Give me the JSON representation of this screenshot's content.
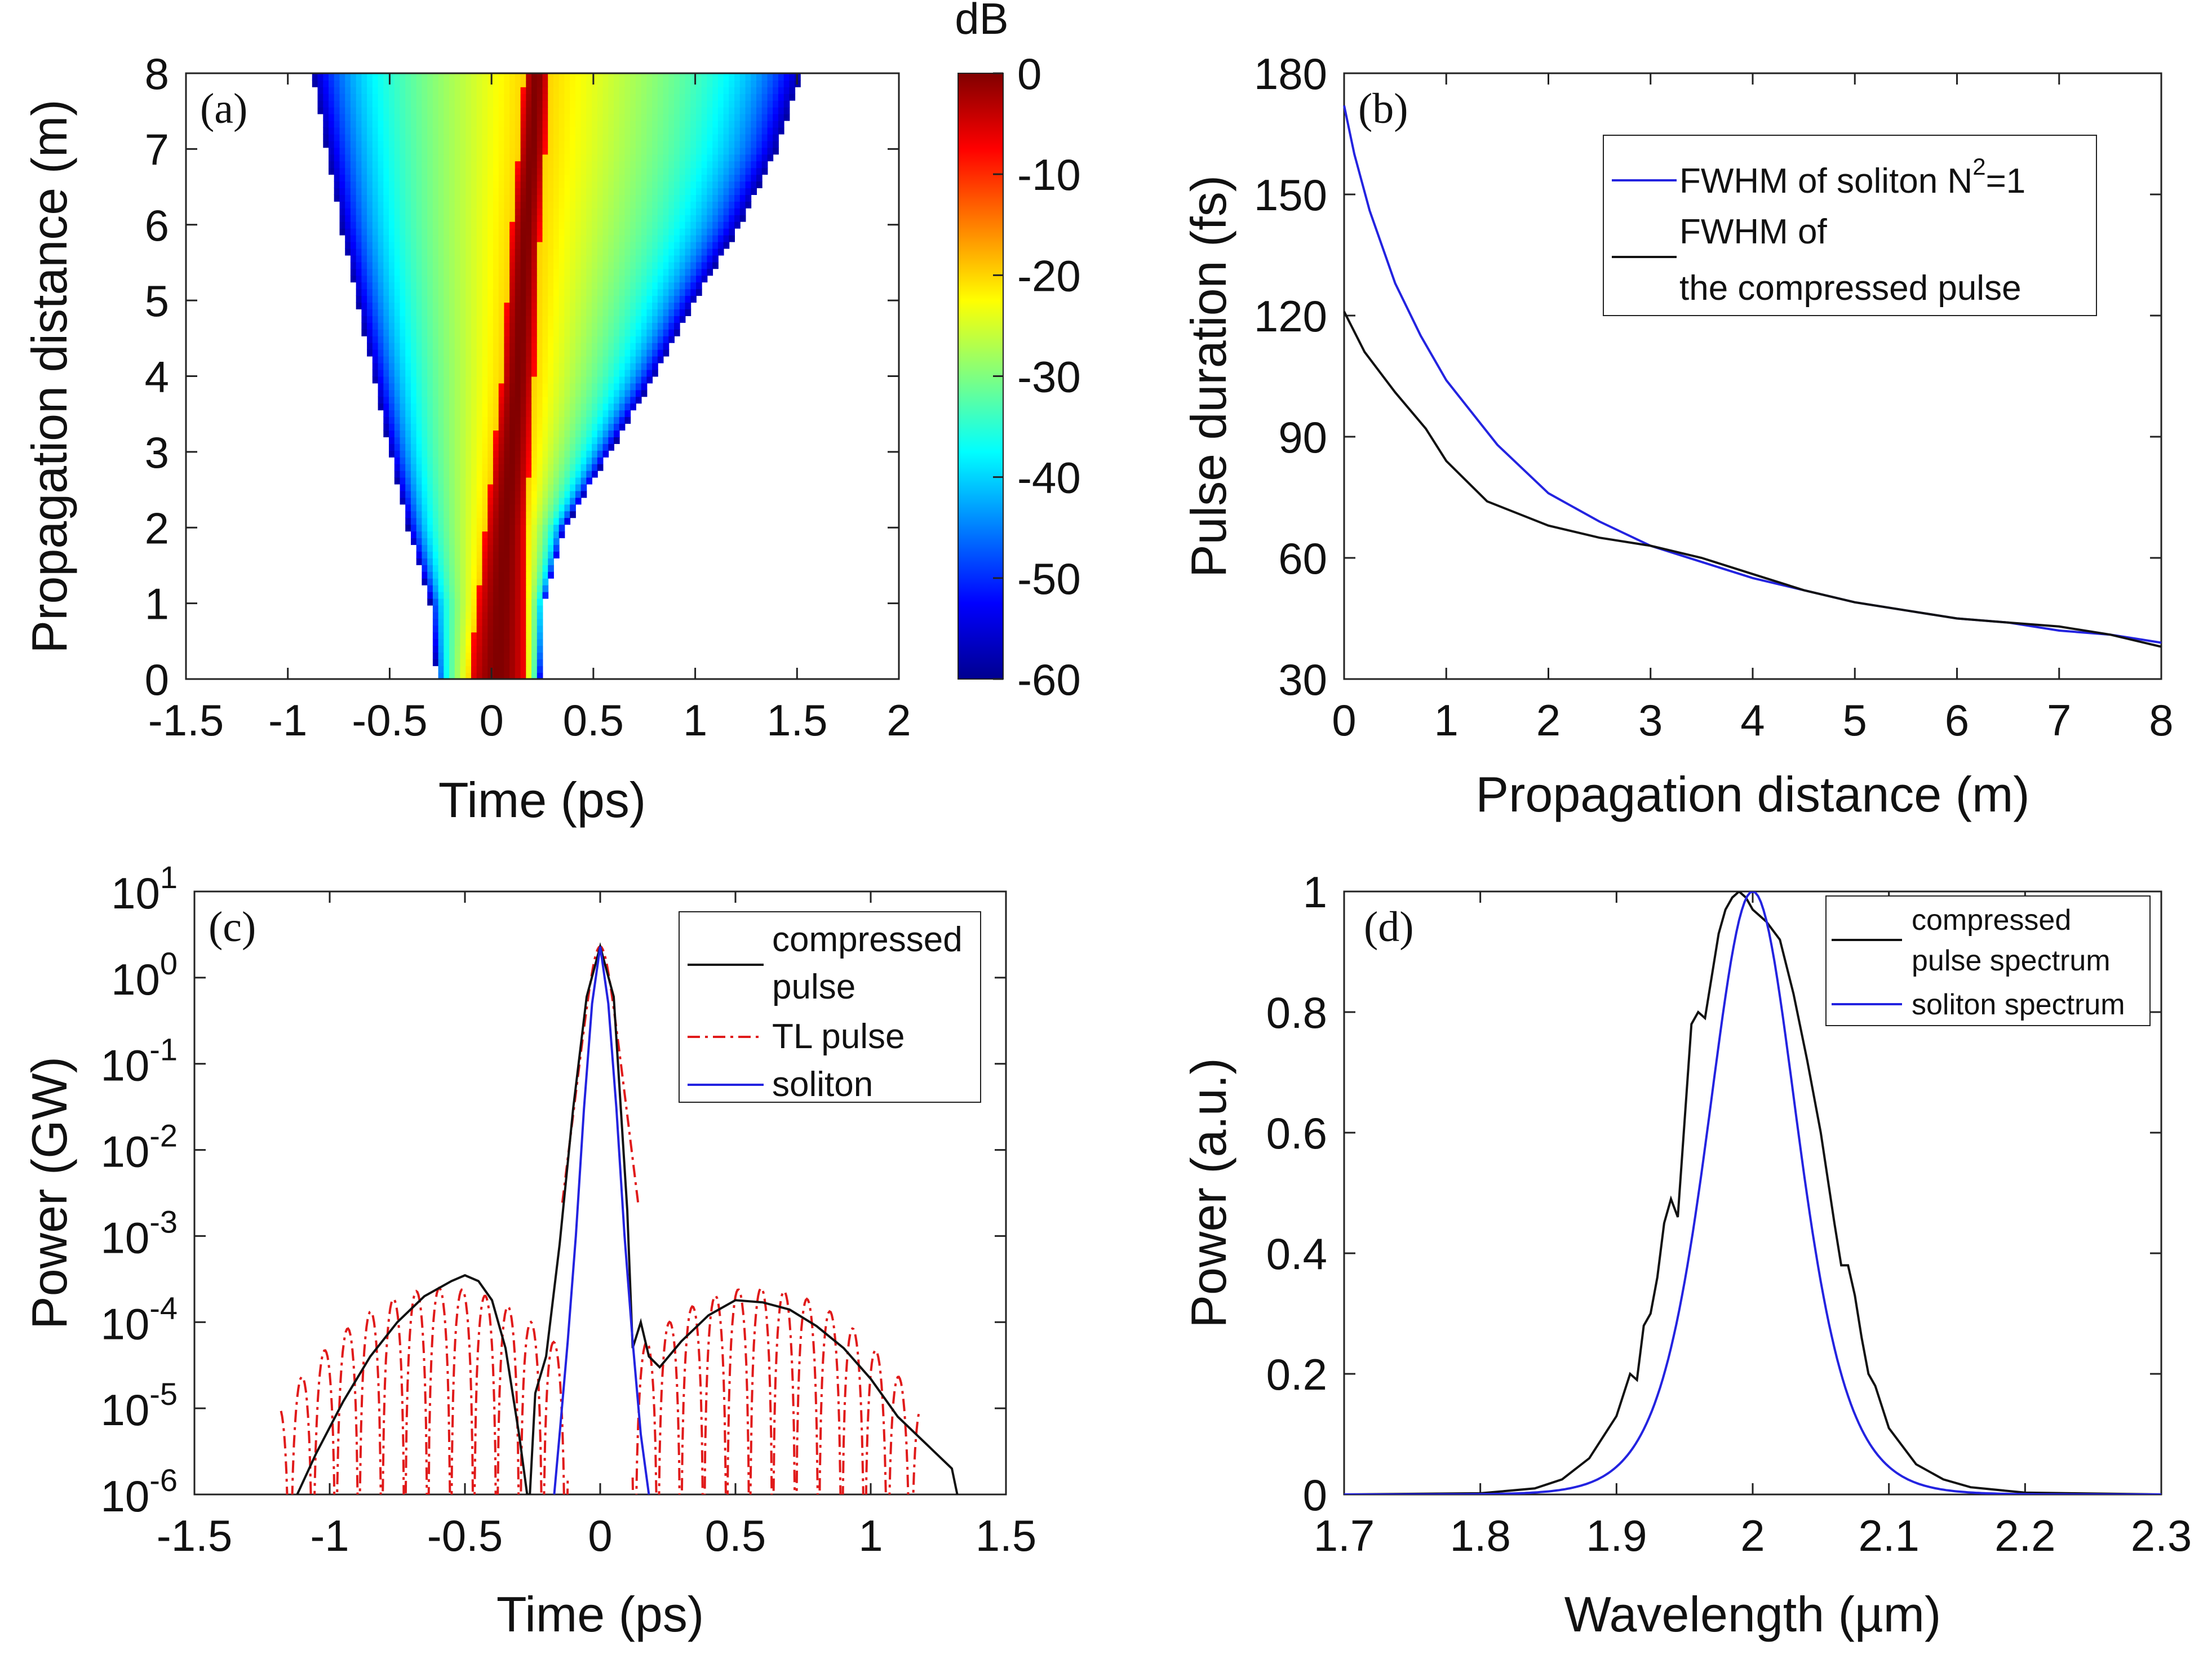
{
  "chart_data": [
    {
      "id": "a",
      "type": "heatmap",
      "panel_label": "(a)",
      "xlabel": "Time (ps)",
      "ylabel": "Propagation distance (m)",
      "xlim": [
        -1.5,
        2
      ],
      "ylim": [
        0,
        8
      ],
      "xticks": [
        "-1.5",
        "-1",
        "-0.5",
        "0",
        "0.5",
        "1",
        "1.5",
        "2"
      ],
      "yticks": [
        "0",
        "1",
        "2",
        "3",
        "4",
        "5",
        "6",
        "7",
        "8"
      ],
      "colorbar": {
        "label": "dB",
        "range": [
          -60,
          0
        ],
        "ticks": [
          "0",
          "-10",
          "-20",
          "-30",
          "-40",
          "-50",
          "-60"
        ],
        "colormap": "jet"
      },
      "field": {
        "z": [
          0,
          1,
          2,
          3,
          4,
          5,
          6,
          7,
          8
        ],
        "left_edge": [
          -0.27,
          -0.3,
          -0.41,
          -0.5,
          -0.58,
          -0.66,
          -0.74,
          -0.81,
          -0.88
        ],
        "right_edge": [
          0.24,
          0.26,
          0.36,
          0.58,
          0.8,
          1.0,
          1.22,
          1.4,
          1.52
        ],
        "core_center": [
          0.03,
          0.05,
          0.07,
          0.1,
          0.13,
          0.15,
          0.17,
          0.2,
          0.22
        ],
        "core_halfwidth": [
          0.14,
          0.12,
          0.1,
          0.09,
          0.08,
          0.075,
          0.07,
          0.065,
          0.06
        ]
      }
    },
    {
      "id": "b",
      "type": "line",
      "panel_label": "(b)",
      "xlabel": "Propagation distance (m)",
      "ylabel": "Pulse duration (fs)",
      "xlim": [
        0,
        8
      ],
      "ylim": [
        30,
        180
      ],
      "xticks": [
        "0",
        "1",
        "2",
        "3",
        "4",
        "5",
        "6",
        "7",
        "8"
      ],
      "yticks": [
        "30",
        "60",
        "90",
        "120",
        "150",
        "180"
      ],
      "legend": "top-right",
      "series": [
        {
          "name": "FWHM of soliton N",
          "name_sup": "2",
          "name_suffix": "=1",
          "color": "#2323e0",
          "x": [
            0,
            0.1,
            0.25,
            0.5,
            0.75,
            1,
            1.5,
            2,
            2.5,
            3,
            3.5,
            4,
            4.5,
            5,
            5.5,
            6,
            6.5,
            7,
            7.5,
            8
          ],
          "y": [
            172,
            160,
            146,
            128,
            115,
            104,
            88,
            76,
            69,
            63,
            59,
            55,
            52,
            49,
            47,
            45,
            44,
            42,
            41,
            39
          ]
        },
        {
          "name": "FWHM of",
          "name_line2": "the compressed pulse",
          "color": "#111111",
          "x": [
            0,
            0.2,
            0.5,
            0.8,
            1,
            1.2,
            1.4,
            1.7,
            2,
            2.5,
            3,
            3.5,
            4,
            4.5,
            5,
            5.5,
            6,
            6.5,
            7,
            7.5,
            8
          ],
          "y": [
            121,
            111,
            101,
            92,
            84,
            79,
            74,
            71,
            68,
            65,
            63,
            60,
            56,
            52,
            49,
            47,
            45,
            44,
            43,
            41,
            38
          ]
        }
      ]
    },
    {
      "id": "c",
      "type": "line",
      "panel_label": "(c)",
      "xlabel": "Time (ps)",
      "ylabel": "Power (GW)",
      "yscale": "log",
      "xlim": [
        -1.5,
        1.5
      ],
      "ylim": [
        1e-06,
        10
      ],
      "xticks": [
        "-1.5",
        "-1",
        "-0.5",
        "0",
        "0.5",
        "1",
        "1.5"
      ],
      "yticks_exp": [
        "1",
        "0",
        "-1",
        "-2",
        "-3",
        "-4",
        "-5",
        "-6"
      ],
      "ytick_base": "10",
      "legend": "top-right",
      "series": [
        {
          "name": "compressed",
          "name_line2": "pulse",
          "color": "#111111",
          "style": "solid",
          "x": [
            -1.12,
            -1.05,
            -0.95,
            -0.85,
            -0.75,
            -0.65,
            -0.55,
            -0.5,
            -0.45,
            -0.4,
            -0.35,
            -0.3,
            -0.27,
            -0.26,
            -0.24,
            -0.2,
            -0.15,
            -0.1,
            -0.05,
            0,
            0.05,
            0.1,
            0.12,
            0.15,
            0.18,
            0.22,
            0.3,
            0.4,
            0.5,
            0.6,
            0.7,
            0.8,
            0.9,
            1.0,
            1.1,
            1.2,
            1.3,
            1.32
          ],
          "y": [
            1e-06,
            3e-06,
            1.2e-05,
            4e-05,
            0.0001,
            0.0002,
            0.0003,
            0.00035,
            0.0003,
            0.00018,
            5e-05,
            5e-06,
            1e-06,
            1e-06,
            1.5e-05,
            4e-05,
            0.0008,
            0.03,
            0.6,
            2.3,
            0.6,
            0.002,
            5e-05,
            0.0001,
            4e-05,
            3e-05,
            6e-05,
            0.00012,
            0.00018,
            0.00017,
            0.00014,
            9e-05,
            5e-05,
            2.2e-05,
            8e-06,
            4e-06,
            2e-06,
            1e-06
          ]
        },
        {
          "name": "TL pulse",
          "color": "#e01a1a",
          "style": "dashdot",
          "envelope": 0.00025,
          "x_start": -1.18,
          "x_end": 1.18,
          "x_gap": [
            -0.12,
            0.12
          ],
          "lobe_period": 0.085
        },
        {
          "name": "soliton",
          "color": "#2323e0",
          "style": "solid",
          "x": [
            -0.17,
            -0.15,
            -0.12,
            -0.09,
            -0.06,
            -0.03,
            0,
            0.03,
            0.06,
            0.09,
            0.12,
            0.15,
            0.18
          ],
          "y": [
            1e-06,
            5e-06,
            6e-05,
            0.001,
            0.03,
            0.5,
            2.3,
            0.5,
            0.03,
            0.001,
            6e-05,
            5e-06,
            1e-06
          ]
        }
      ]
    },
    {
      "id": "d",
      "type": "line",
      "panel_label": "(d)",
      "xlabel": "Wavelength (µm)",
      "ylabel": "Power (a.u.)",
      "xlim": [
        1.7,
        2.3
      ],
      "ylim": [
        0,
        1
      ],
      "xticks": [
        "1.7",
        "1.8",
        "1.9",
        "2",
        "2.1",
        "2.2",
        "2.3"
      ],
      "yticks": [
        "0",
        "0.2",
        "0.4",
        "0.6",
        "0.8",
        "1"
      ],
      "legend": "top-right",
      "series": [
        {
          "name": "compressed",
          "name_line2": "pulse spectrum",
          "color": "#111111",
          "x": [
            1.7,
            1.8,
            1.84,
            1.86,
            1.88,
            1.9,
            1.91,
            1.915,
            1.92,
            1.925,
            1.93,
            1.935,
            1.94,
            1.945,
            1.95,
            1.955,
            1.96,
            1.965,
            1.97,
            1.975,
            1.98,
            1.985,
            1.99,
            1.995,
            2.0,
            2.005,
            2.01,
            2.02,
            2.03,
            2.04,
            2.05,
            2.06,
            2.065,
            2.07,
            2.075,
            2.08,
            2.085,
            2.09,
            2.1,
            2.12,
            2.14,
            2.16,
            2.2,
            2.3
          ],
          "y": [
            0,
            0.002,
            0.01,
            0.025,
            0.06,
            0.13,
            0.2,
            0.19,
            0.28,
            0.3,
            0.36,
            0.45,
            0.49,
            0.46,
            0.62,
            0.78,
            0.8,
            0.79,
            0.86,
            0.93,
            0.97,
            0.99,
            1.0,
            0.99,
            0.97,
            0.96,
            0.95,
            0.92,
            0.83,
            0.72,
            0.6,
            0.45,
            0.38,
            0.38,
            0.33,
            0.26,
            0.2,
            0.18,
            0.11,
            0.05,
            0.025,
            0.012,
            0.003,
            0
          ]
        },
        {
          "name": "soliton spectrum",
          "color": "#2323e0",
          "center": 2.0,
          "sech2_width": 0.045
        }
      ]
    }
  ]
}
